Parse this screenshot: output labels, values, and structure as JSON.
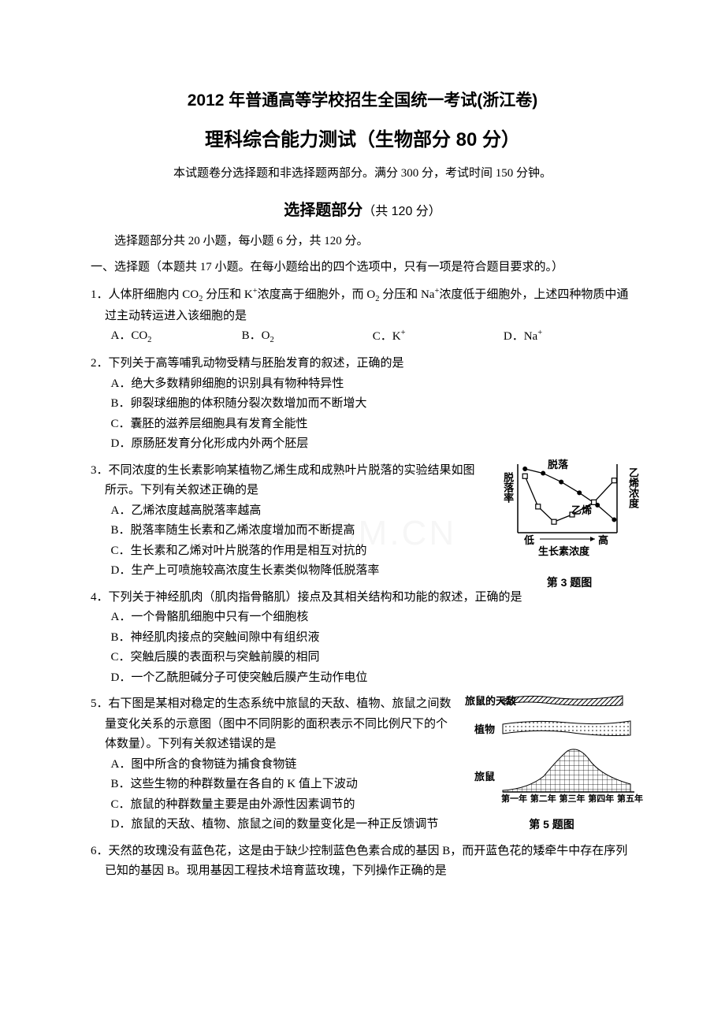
{
  "header": {
    "title1": "2012 年普通高等学校招生全国统一考试(浙江卷)",
    "title2": "理科综合能力测试（生物部分 80 分）",
    "subtitle": "本试题卷分选择题和非选择题两部分。满分 300 分，考试时间 150 分钟。",
    "section_title": "选择题部分",
    "section_points": "（共 120 分）",
    "note": "选择题部分共 20 小题，每小题 6 分，共 120 分。",
    "section_head": "一、选择题（本题共 17 小题。在每小题给出的四个选项中，只有一项是符合题目要求的。）"
  },
  "q1": {
    "stem_prefix": "1．人体肝细胞内 CO",
    "stem_mid1": " 分压和 K",
    "stem_mid2": "浓度高于细胞外，而 O",
    "stem_mid3": " 分压和 Na",
    "stem_suffix": "浓度低于细胞外，上述四种物质中通过主动转运进入该细胞的是",
    "optA_pre": "A．CO",
    "optA_sub": "2",
    "optB_pre": "B．O",
    "optB_sub": "2",
    "optC_pre": "C．K",
    "optC_sup": "+",
    "optD_pre": "D．Na",
    "optD_sup": "+"
  },
  "q2": {
    "stem": "2．下列关于高等哺乳动物受精与胚胎发育的叙述，正确的是",
    "A": "A．绝大多数精卵细胞的识别具有物种特异性",
    "B": "B．卵裂球细胞的体积随分裂次数增加而不断增大",
    "C": "C．囊胚的滋养层细胞具有发育全能性",
    "D": "D．原肠胚发育分化形成内外两个胚层"
  },
  "q3": {
    "stem": "3．不同浓度的生长素影响某植物乙烯生成和成熟叶片脱落的实验结果如图所示。下列有关叙述正确的是",
    "A": "A．乙烯浓度越高脱落率越高",
    "B": "B．脱落率随生长素和乙烯浓度增加而不断提高",
    "C": "C．生长素和乙烯对叶片脱落的作用是相互对抗的",
    "D": "D．生产上可喷施较高浓度生长素类似物降低脱落率",
    "fig": {
      "caption": "第 3 题图",
      "y_left": "脱落率",
      "y_right": "乙烯浓度",
      "x_label": "生长素浓度",
      "x_low": "低",
      "x_high": "高",
      "label_drop": "脱落",
      "label_eth": "乙烯",
      "axis_color": "#000000",
      "line_color": "#000000",
      "bg": "#ffffff",
      "drop_points": [
        [
          10,
          78
        ],
        [
          28,
          36
        ],
        [
          50,
          15
        ],
        [
          75,
          25
        ],
        [
          105,
          42
        ],
        [
          133,
          72
        ]
      ],
      "eth_points": [
        [
          10,
          88
        ],
        [
          35,
          82
        ],
        [
          60,
          70
        ],
        [
          85,
          55
        ],
        [
          110,
          38
        ],
        [
          133,
          18
        ]
      ]
    }
  },
  "q4": {
    "stem": "4．下列关于神经肌肉（肌肉指骨骼肌）接点及其相关结构和功能的叙述，正确的是",
    "A": "A．一个骨骼肌细胞中只有一个细胞核",
    "B": "B．神经肌肉接点的突触间隙中有组织液",
    "C": "C．突触后膜的表面积与突触前膜的相同",
    "D": "D．一个乙酰胆碱分子可使突触后膜产生动作电位"
  },
  "q5": {
    "stem": "5．右下图是某相对稳定的生态系统中旅鼠的天敌、植物、旅鼠之间数量变化关系的示意图（图中不同阴影的面积表示不同比例尺下的个体数量）。下列有关叙述错误的是",
    "A": "A．图中所含的食物链为捕食食物链",
    "B": "B．这些生物的种群数量在各自的 K 值上下波动",
    "C": "C．旅鼠的种群数量主要是由外源性因素调节的",
    "D": "D．旅鼠的天敌、植物、旅鼠之间的数量变化是一种正反馈调节",
    "fig": {
      "caption": "第 5 题图",
      "row1": "旅鼠的天敌",
      "row2": "植物",
      "row3": "旅鼠",
      "x_labels": [
        "第一年",
        "第二年",
        "第三年",
        "第四年",
        "第五年"
      ],
      "axis_color": "#000000",
      "bg": "#ffffff"
    }
  },
  "q6": {
    "stem": "6．天然的玫瑰没有蓝色花，这是由于缺少控制蓝色色素合成的基因 B，而开蓝色花的矮牵牛中存在序列已知的基因 B。现用基因工程技术培育蓝玫瑰，下列操作正确的是"
  },
  "watermark": "ZIXIN.COM.CN"
}
